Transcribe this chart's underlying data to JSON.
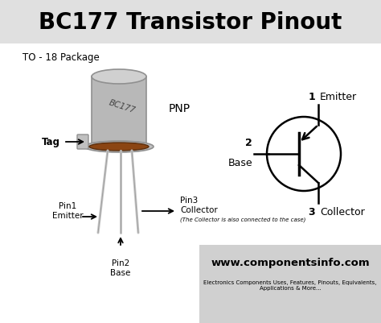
{
  "title": "BC177 Transistor Pinout",
  "title_fontsize": 20,
  "title_bg": "#e0e0e0",
  "body_bg": "#ffffff",
  "footer_bg": "#d0d0d0",
  "package_label": "TO - 18 Package",
  "pnp_label": "PNP",
  "tag_label": "Tag",
  "pin1_label": "Pin1\nEmitter",
  "pin2_label": "Pin2\nBase",
  "pin3_label": "Pin3\nCollector",
  "collector_note": "(The Collector is also connected to the case)",
  "emitter_label": "Emitter",
  "base_label": "Base",
  "collector_label": "Collector",
  "bc177_label": "BC177",
  "website": "www.componentsinfo.com",
  "website_sub": "Electronics Components Uses, Features, Pinouts, Equivalents,\nApplications & More...",
  "pin_numbers": [
    "1",
    "2",
    "3"
  ],
  "fig_w": 4.74,
  "fig_h": 4.02,
  "dpi": 100
}
